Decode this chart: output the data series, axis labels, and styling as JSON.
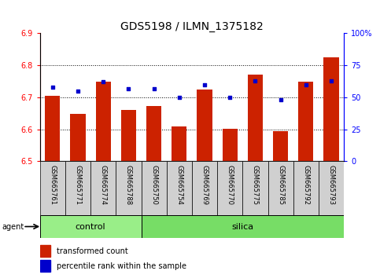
{
  "title": "GDS5198 / ILMN_1375182",
  "samples": [
    "GSM665761",
    "GSM665771",
    "GSM665774",
    "GSM665788",
    "GSM665750",
    "GSM665754",
    "GSM665769",
    "GSM665770",
    "GSM665775",
    "GSM665785",
    "GSM665792",
    "GSM665793"
  ],
  "groups": [
    "control",
    "control",
    "control",
    "control",
    "silica",
    "silica",
    "silica",
    "silica",
    "silica",
    "silica",
    "silica",
    "silica"
  ],
  "transformed_count": [
    6.705,
    6.648,
    6.748,
    6.66,
    6.673,
    6.61,
    6.725,
    6.602,
    6.77,
    6.595,
    6.748,
    6.825
  ],
  "percentile_rank": [
    58,
    55,
    62,
    57,
    57,
    50,
    60,
    50,
    63,
    48,
    60,
    63
  ],
  "ylim_left": [
    6.5,
    6.9
  ],
  "ylim_right": [
    0,
    100
  ],
  "yticks_left": [
    6.5,
    6.6,
    6.7,
    6.8,
    6.9
  ],
  "yticks_right": [
    0,
    25,
    50,
    75,
    100
  ],
  "ytick_labels_right": [
    "0",
    "25",
    "50",
    "75",
    "100%"
  ],
  "bar_color": "#cc2200",
  "dot_color": "#0000cc",
  "n_control": 4,
  "n_silica": 8,
  "control_color": "#99ee88",
  "silica_color": "#77dd66",
  "bar_width": 0.6,
  "title_fontsize": 10,
  "tick_fontsize": 7,
  "sample_fontsize": 6,
  "group_fontsize": 8,
  "legend_fontsize": 7,
  "agent_fontsize": 7
}
